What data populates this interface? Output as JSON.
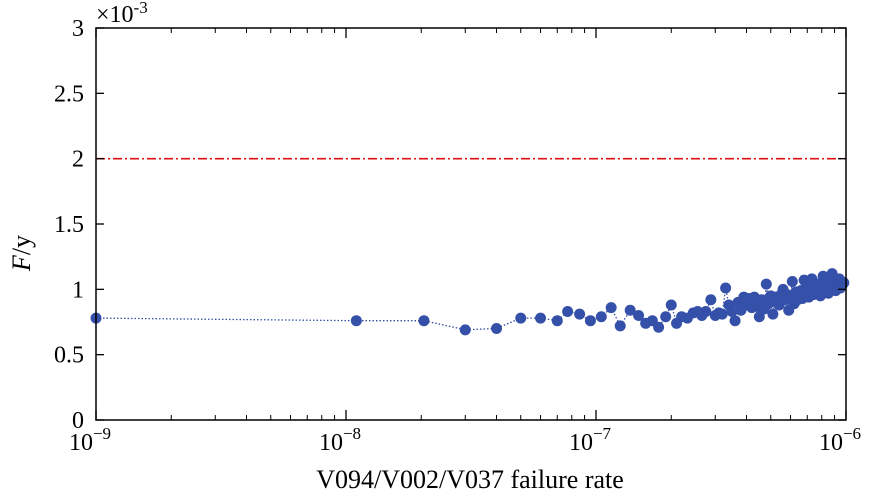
{
  "chart_data": {
    "type": "scatter",
    "xlabel": "V094/V002/V037 failure rate",
    "ylabel_main": "F",
    "ylabel_unit": "/y",
    "y_multiplier_label": "×10",
    "y_multiplier_exp": "-3",
    "xscale": "log",
    "xlim": [
      1e-09,
      1e-06
    ],
    "ylim": [
      0,
      3
    ],
    "x_ticks": [
      {
        "value": 1e-09,
        "base": "10",
        "exp": "−9"
      },
      {
        "value": 1e-08,
        "base": "10",
        "exp": "−8"
      },
      {
        "value": 1e-07,
        "base": "10",
        "exp": "−7"
      },
      {
        "value": 1e-06,
        "base": "10",
        "exp": "−6"
      }
    ],
    "y_ticks": [
      "0",
      "0.5",
      "1",
      "1.5",
      "2",
      "2.5",
      "3"
    ],
    "threshold": {
      "y": 2,
      "color": "#dd1111",
      "style": "dash-dot"
    },
    "marker_color": "#3550a8",
    "grid": false,
    "series": [
      {
        "x": [
          1e-09,
          1.1e-08,
          2.05e-08,
          3e-08,
          4e-08,
          5e-08,
          6e-08,
          7e-08,
          7.7e-08,
          8.6e-08,
          9.5e-08,
          1.05e-07,
          1.15e-07,
          1.25e-07,
          1.37e-07,
          1.48e-07,
          1.58e-07,
          1.68e-07,
          1.78e-07,
          1.9e-07,
          2e-07,
          2.1e-07,
          2.2e-07,
          2.32e-07,
          2.45e-07,
          2.55e-07,
          2.65e-07,
          2.75e-07,
          2.88e-07,
          3e-07,
          3.1e-07,
          3.2e-07,
          3.3e-07,
          3.4e-07,
          3.5e-07,
          3.6e-07,
          3.7e-07,
          3.8e-07,
          3.9e-07,
          4e-07,
          4.1e-07,
          4.2e-07,
          4.3e-07,
          4.4e-07,
          4.5e-07,
          4.6e-07,
          4.7e-07,
          4.8e-07,
          4.9e-07,
          5e-07,
          5.1e-07,
          5.2e-07,
          5.3e-07,
          5.4e-07,
          5.5e-07,
          5.6e-07,
          5.7e-07,
          5.8e-07,
          5.9e-07,
          6e-07,
          6.1e-07,
          6.2e-07,
          6.3e-07,
          6.4e-07,
          6.5e-07,
          6.6e-07,
          6.7e-07,
          6.8e-07,
          6.9e-07,
          7e-07,
          7.1e-07,
          7.2e-07,
          7.3e-07,
          7.4e-07,
          7.5e-07,
          7.6e-07,
          7.7e-07,
          7.8e-07,
          7.9e-07,
          8e-07,
          8.1e-07,
          8.2e-07,
          8.3e-07,
          8.4e-07,
          8.5e-07,
          8.6e-07,
          8.7e-07,
          8.8e-07,
          8.9e-07,
          9e-07,
          9.1e-07,
          9.2e-07,
          9.3e-07,
          9.4e-07,
          9.5e-07,
          9.6e-07,
          9.7e-07,
          9.8e-07
        ],
        "y": [
          0.78,
          0.76,
          0.76,
          0.69,
          0.7,
          0.78,
          0.78,
          0.76,
          0.83,
          0.81,
          0.76,
          0.79,
          0.86,
          0.72,
          0.84,
          0.8,
          0.74,
          0.76,
          0.71,
          0.79,
          0.88,
          0.74,
          0.79,
          0.78,
          0.82,
          0.83,
          0.8,
          0.83,
          0.92,
          0.8,
          0.82,
          0.81,
          1.01,
          0.88,
          0.83,
          0.76,
          0.9,
          0.84,
          0.94,
          0.88,
          0.93,
          0.86,
          0.94,
          0.87,
          0.79,
          0.92,
          0.85,
          1.04,
          0.89,
          0.95,
          0.81,
          0.94,
          0.9,
          0.88,
          0.96,
          1.0,
          0.92,
          0.96,
          0.84,
          0.93,
          1.06,
          0.89,
          0.98,
          0.92,
          0.96,
          0.99,
          0.93,
          1.07,
          0.97,
          1.02,
          0.94,
          0.99,
          1.08,
          0.96,
          1.02,
          0.98,
          1.04,
          1.0,
          0.95,
          1.03,
          1.1,
          0.99,
          1.05,
          1.01,
          0.97,
          1.06,
          1.02,
          1.12,
          1.0,
          1.05,
          0.99,
          1.07,
          1.03,
          1.08,
          1.01,
          1.06,
          1.04,
          1.05
        ]
      }
    ]
  }
}
